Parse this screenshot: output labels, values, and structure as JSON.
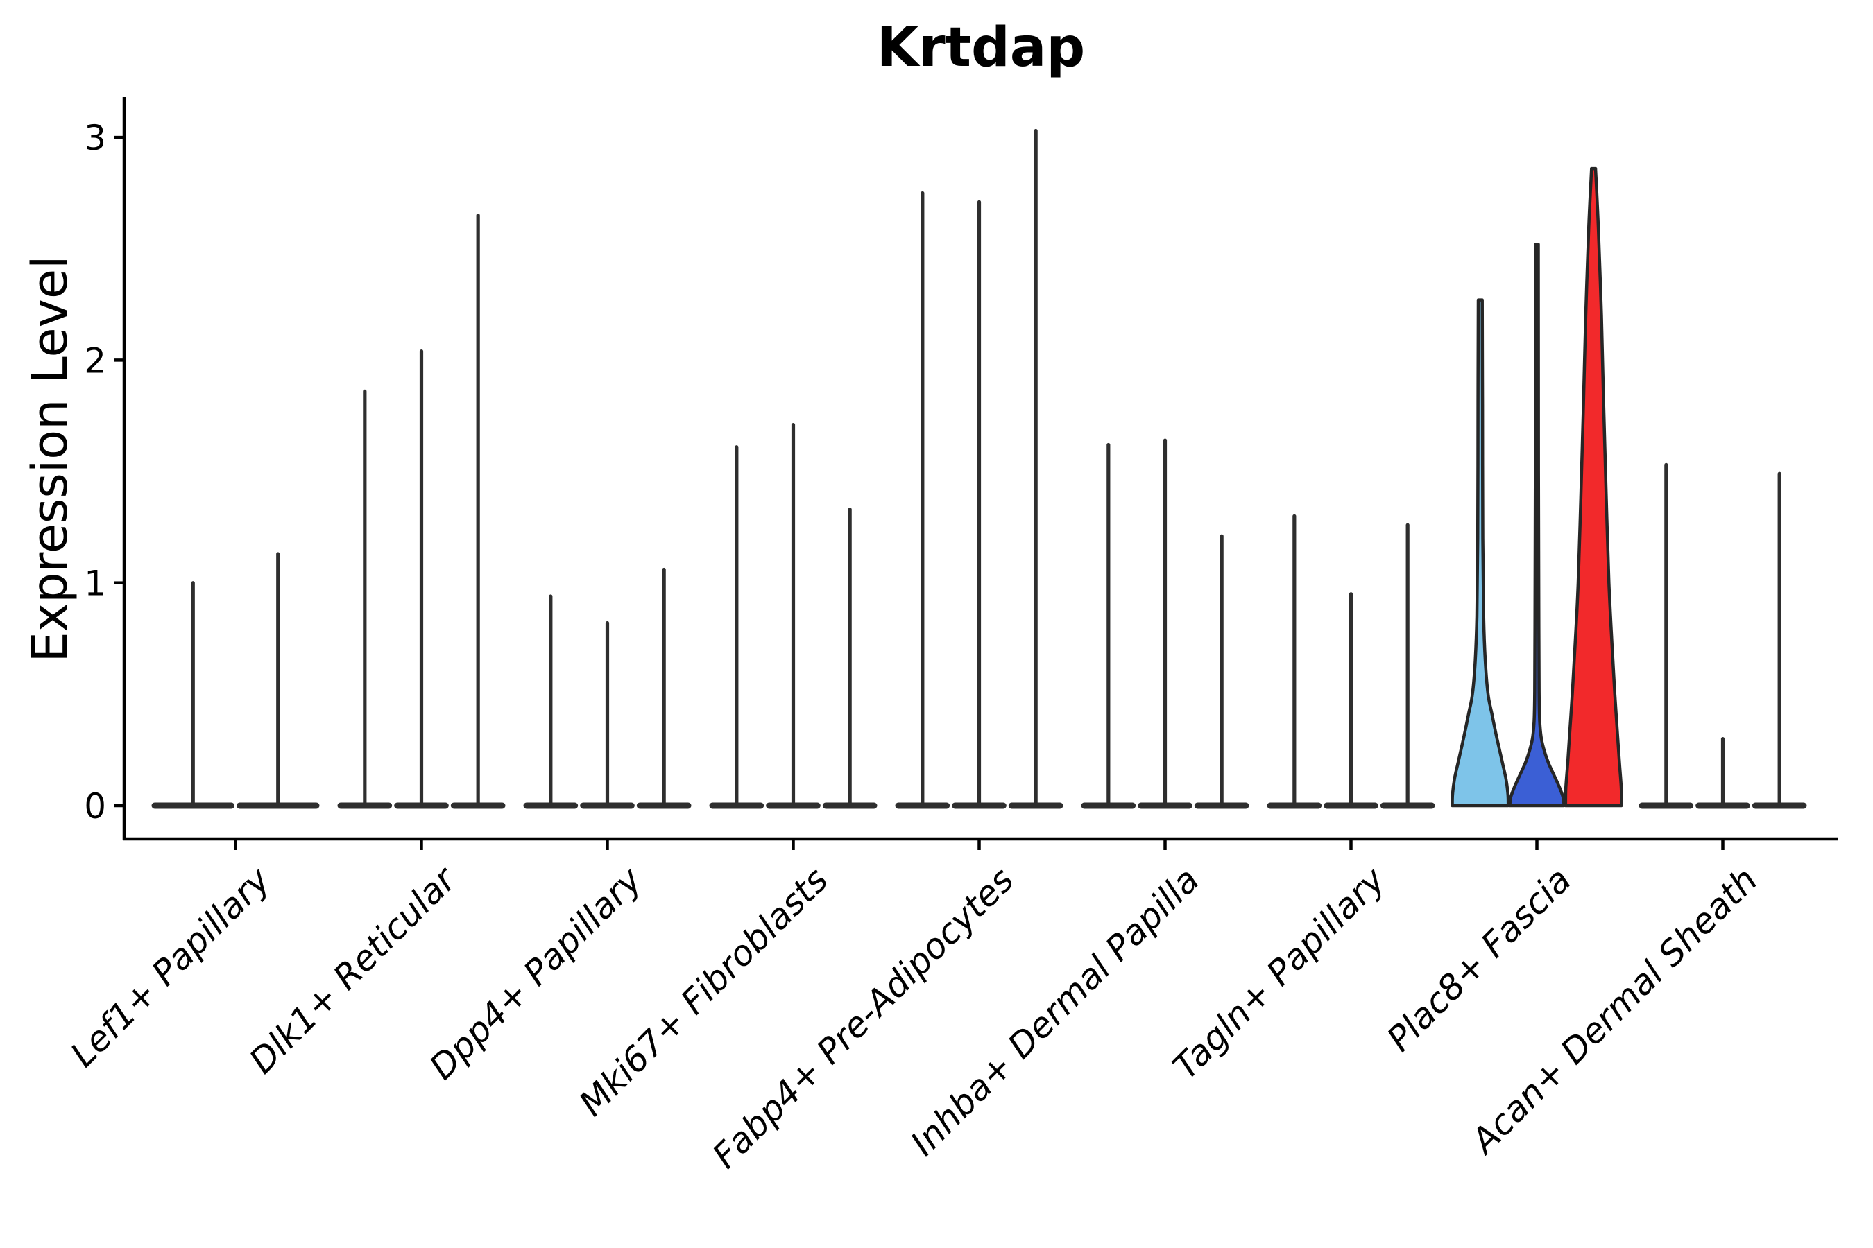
{
  "chart_data": {
    "type": "violin",
    "title": "Krtdap",
    "xlabel": "",
    "ylabel": "Expression Level",
    "ylim": [
      0,
      3.18
    ],
    "yticks": [
      0,
      1,
      2,
      3
    ],
    "grid": false,
    "legend": "none",
    "ink_color": "#2e2e2e",
    "axis_color": "#000000",
    "highlight_fills": [
      "#7EC4E9",
      "#3B5FD5",
      "#F2292B"
    ],
    "groups": [
      {
        "label": "Lef1+ Papillary",
        "violins": [
          {
            "max": 1.0
          },
          {
            "max": 1.13
          }
        ]
      },
      {
        "label": "Dlk1+ Reticular",
        "violins": [
          {
            "max": 1.86
          },
          {
            "max": 2.04
          },
          {
            "max": 2.65
          }
        ]
      },
      {
        "label": "Dpp4+ Papillary",
        "violins": [
          {
            "max": 0.94
          },
          {
            "max": 0.82
          },
          {
            "max": 1.06
          }
        ]
      },
      {
        "label": "Mki67+ Fibroblasts",
        "violins": [
          {
            "max": 1.61
          },
          {
            "max": 1.71
          },
          {
            "max": 1.33
          }
        ]
      },
      {
        "label": "Fabp4+ Pre-Adipocytes",
        "violins": [
          {
            "max": 2.75
          },
          {
            "max": 2.71
          },
          {
            "max": 3.03
          }
        ]
      },
      {
        "label": "Inhba+ Dermal Papilla",
        "violins": [
          {
            "max": 1.62
          },
          {
            "max": 1.64
          },
          {
            "max": 1.21
          }
        ]
      },
      {
        "label": "Tagln+ Papillary",
        "violins": [
          {
            "max": 1.3
          },
          {
            "max": 0.95
          },
          {
            "max": 1.26
          }
        ]
      },
      {
        "label": "Plac8+ Fascia",
        "violins": [
          {
            "max": 2.27,
            "fill": "#7EC4E9",
            "profile": [
              [
                2.27,
                0.07
              ],
              [
                1.8,
                0.08
              ],
              [
                1.2,
                0.09
              ],
              [
                0.85,
                0.12
              ],
              [
                0.65,
                0.18
              ],
              [
                0.5,
                0.28
              ],
              [
                0.41,
                0.42
              ],
              [
                0.3,
                0.6
              ],
              [
                0.2,
                0.78
              ],
              [
                0.12,
                0.92
              ],
              [
                0.05,
                0.99
              ],
              [
                0.0,
                1.0
              ]
            ]
          },
          {
            "max": 2.52,
            "fill": "#3B5FD5",
            "profile": [
              [
                2.52,
                0.05
              ],
              [
                1.5,
                0.055
              ],
              [
                0.8,
                0.07
              ],
              [
                0.5,
                0.08
              ],
              [
                0.38,
                0.1
              ],
              [
                0.3,
                0.16
              ],
              [
                0.24,
                0.28
              ],
              [
                0.19,
                0.42
              ],
              [
                0.14,
                0.6
              ],
              [
                0.09,
                0.78
              ],
              [
                0.04,
                0.93
              ],
              [
                0.0,
                0.97
              ]
            ]
          },
          {
            "max": 2.86,
            "fill": "#F2292B",
            "profile": [
              [
                2.86,
                0.07
              ],
              [
                2.6,
                0.17
              ],
              [
                2.2,
                0.28
              ],
              [
                1.8,
                0.36
              ],
              [
                1.4,
                0.45
              ],
              [
                1.0,
                0.55
              ],
              [
                0.72,
                0.66
              ],
              [
                0.5,
                0.76
              ],
              [
                0.35,
                0.84
              ],
              [
                0.2,
                0.92
              ],
              [
                0.08,
                0.99
              ],
              [
                0.0,
                1.0
              ]
            ]
          }
        ]
      },
      {
        "label": "Acan+ Dermal Sheath",
        "violins": [
          {
            "max": 1.53
          },
          {
            "max": 0.3
          },
          {
            "max": 1.49
          }
        ]
      }
    ]
  }
}
